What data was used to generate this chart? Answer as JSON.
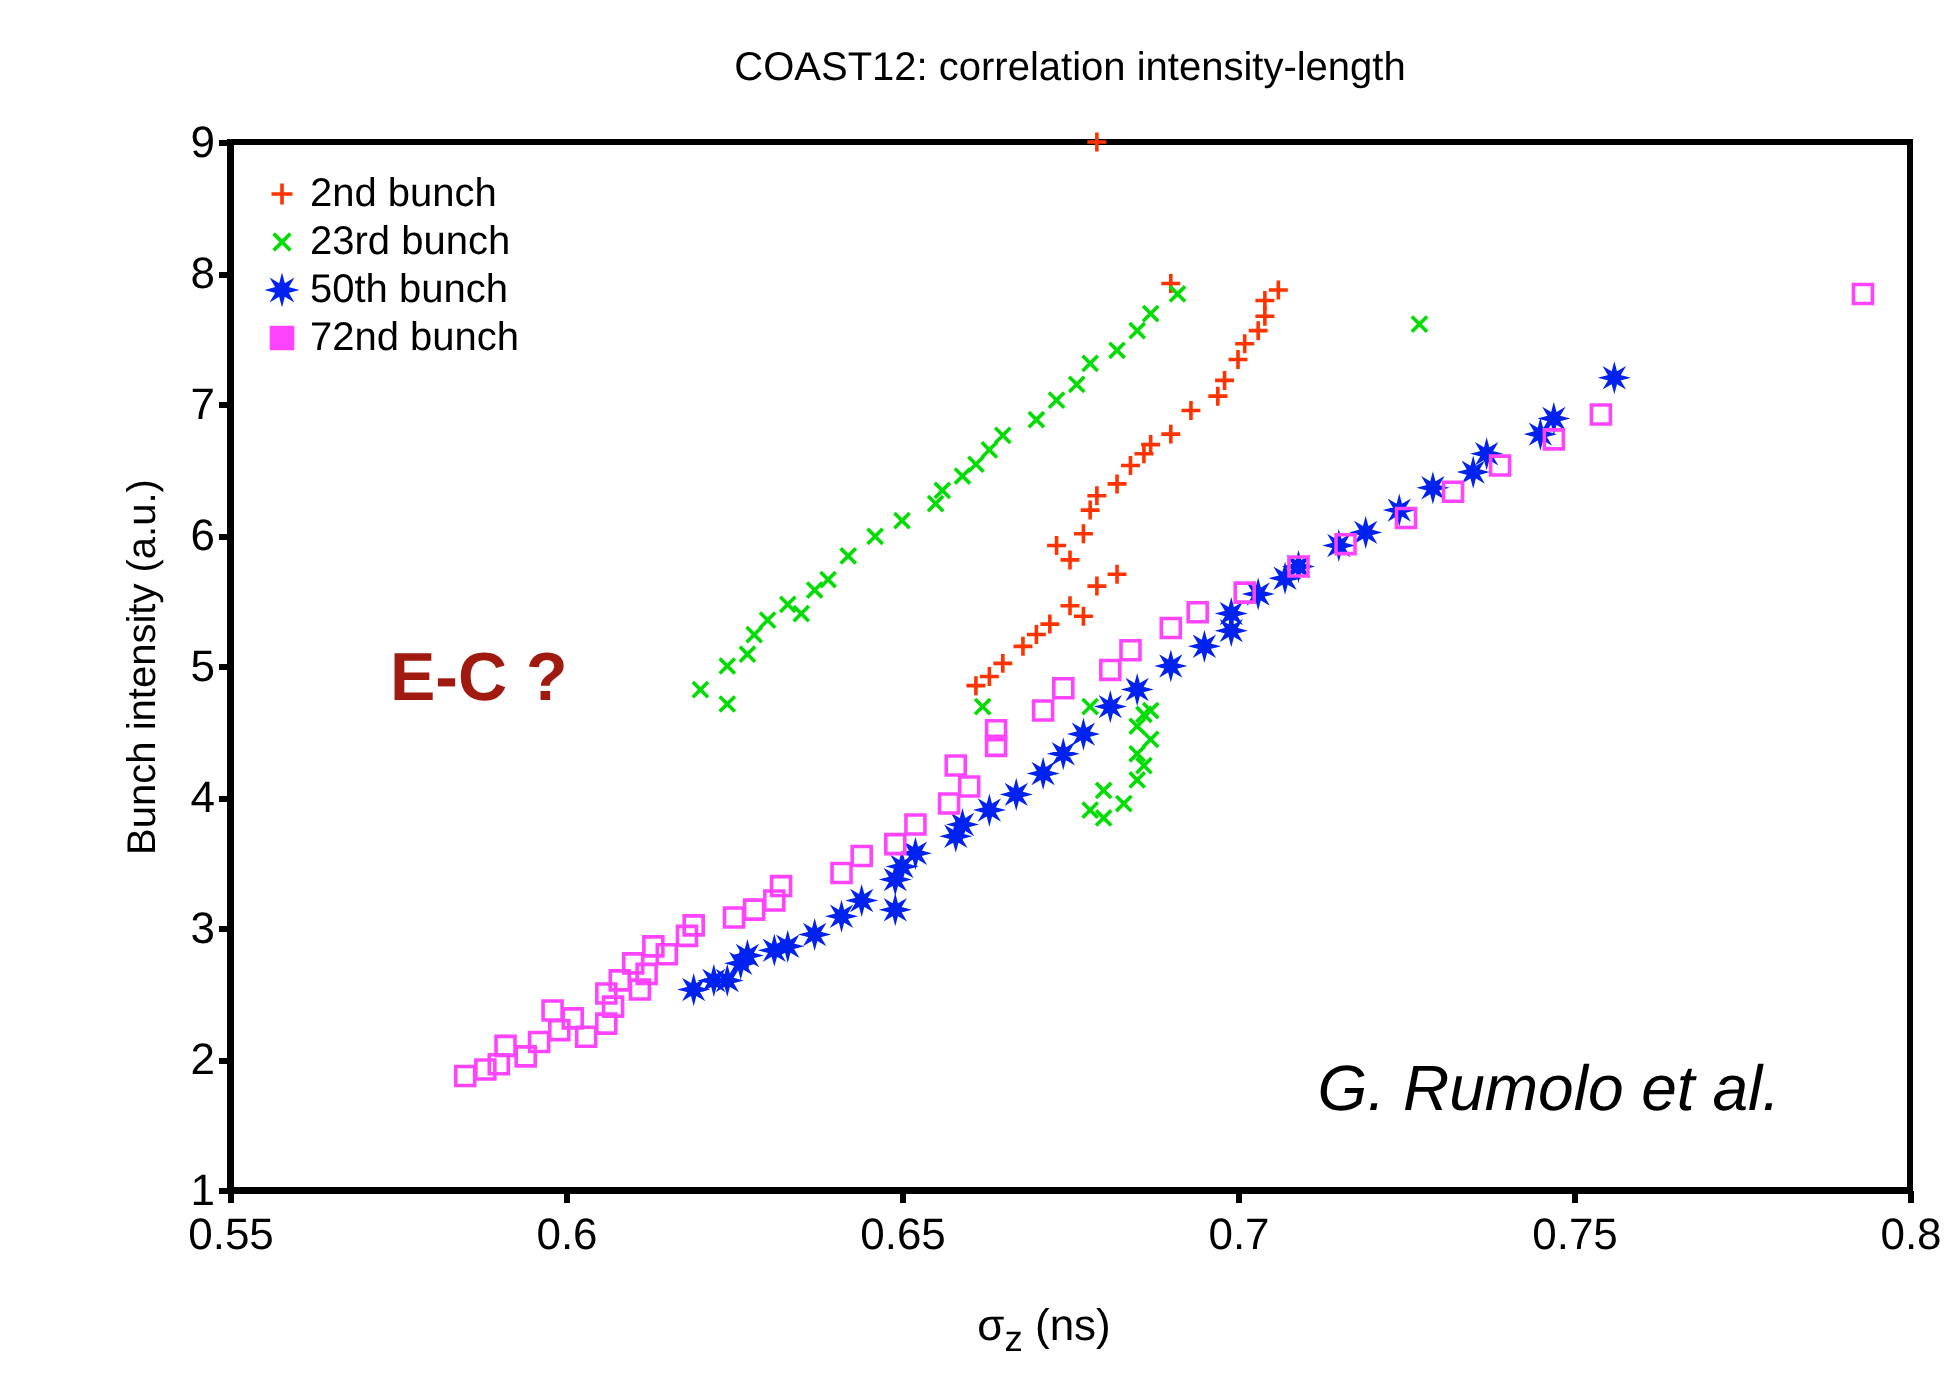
{
  "chart_data": {
    "type": "scatter",
    "title": "COAST12: correlation intensity-length",
    "xlabel": "σ$_{z}$ (ns)",
    "ylabel": "Bunch intensity (a.u.)",
    "xlim": [
      0.55,
      0.8
    ],
    "xticks": [
      0.55,
      {
        "value": 0.6,
        "label": "0.6"
      },
      0.65,
      {
        "value": 0.7,
        "label": "0.7"
      },
      0.75,
      {
        "value": 0.8,
        "label": "0.8"
      }
    ],
    "ylim": [
      1,
      9
    ],
    "yticks": [
      1,
      2,
      3,
      4,
      5,
      6,
      7,
      8,
      9
    ],
    "grid": false,
    "legend": "top left",
    "annotations": [
      "E-C ?",
      "G. Rumolo et al."
    ],
    "series": [
      {
        "name": "2nd bunch",
        "color": "#ff3300",
        "marker": "cross",
        "x": [
          0.661,
          0.663,
          0.665,
          0.668,
          0.67,
          0.672,
          0.675,
          0.677,
          0.679,
          0.682,
          0.673,
          0.675,
          0.677,
          0.678,
          0.679,
          0.682,
          0.684,
          0.686,
          0.687,
          0.69,
          0.693,
          0.697,
          0.698,
          0.7,
          0.701,
          0.703,
          0.704,
          0.704,
          0.706,
          0.69,
          0.679
        ],
        "values": [
          4.85,
          4.92,
          5.02,
          5.15,
          5.24,
          5.32,
          5.46,
          5.38,
          5.61,
          5.7,
          5.92,
          5.81,
          6.01,
          6.19,
          6.3,
          6.39,
          6.53,
          6.62,
          6.69,
          6.77,
          6.95,
          7.06,
          7.18,
          7.34,
          7.46,
          7.56,
          7.67,
          7.79,
          7.87,
          7.92,
          9.0
        ]
      },
      {
        "name": "23rd bunch",
        "color": "#00dd00",
        "marker": "x",
        "x": [
          0.62,
          0.624,
          0.624,
          0.627,
          0.628,
          0.63,
          0.633,
          0.635,
          0.637,
          0.639,
          0.642,
          0.646,
          0.65,
          0.655,
          0.656,
          0.659,
          0.661,
          0.663,
          0.665,
          0.67,
          0.673,
          0.676,
          0.678,
          0.682,
          0.685,
          0.687,
          0.691,
          0.727,
          0.662,
          0.678,
          0.687,
          0.686,
          0.685,
          0.687,
          0.685,
          0.686,
          0.685,
          0.68,
          0.683,
          0.678,
          0.68
        ],
        "values": [
          4.82,
          4.71,
          5.0,
          5.09,
          5.24,
          5.35,
          5.47,
          5.4,
          5.58,
          5.66,
          5.84,
          5.99,
          6.11,
          6.24,
          6.34,
          6.45,
          6.54,
          6.65,
          6.76,
          6.88,
          7.03,
          7.15,
          7.31,
          7.41,
          7.56,
          7.69,
          7.84,
          7.61,
          4.69,
          4.69,
          4.66,
          4.63,
          4.54,
          4.44,
          4.33,
          4.24,
          4.13,
          4.05,
          3.95,
          3.9,
          3.84
        ]
      },
      {
        "name": "50th bunch",
        "color": "#0022ee",
        "marker": "star",
        "x": [
          0.619,
          0.622,
          0.624,
          0.626,
          0.627,
          0.631,
          0.633,
          0.637,
          0.641,
          0.644,
          0.649,
          0.649,
          0.65,
          0.652,
          0.658,
          0.659,
          0.663,
          0.667,
          0.671,
          0.674,
          0.677,
          0.681,
          0.685,
          0.69,
          0.695,
          0.699,
          0.699,
          0.703,
          0.707,
          0.709,
          0.715,
          0.719,
          0.724,
          0.729,
          0.735,
          0.737,
          0.745,
          0.747,
          0.756
        ],
        "values": [
          2.53,
          2.6,
          2.6,
          2.73,
          2.79,
          2.83,
          2.86,
          2.95,
          3.09,
          3.21,
          3.14,
          3.37,
          3.47,
          3.57,
          3.7,
          3.79,
          3.9,
          4.02,
          4.18,
          4.33,
          4.48,
          4.69,
          4.82,
          5.0,
          5.15,
          5.27,
          5.4,
          5.55,
          5.67,
          5.76,
          5.92,
          6.02,
          6.19,
          6.36,
          6.48,
          6.62,
          6.77,
          6.89,
          7.2
        ]
      },
      {
        "name": "72nd bunch",
        "color": "#ff44ff",
        "marker": "square",
        "x": [
          0.585,
          0.588,
          0.59,
          0.591,
          0.594,
          0.596,
          0.599,
          0.598,
          0.601,
          0.603,
          0.606,
          0.607,
          0.606,
          0.608,
          0.611,
          0.61,
          0.612,
          0.613,
          0.615,
          0.618,
          0.619,
          0.625,
          0.628,
          0.631,
          0.632,
          0.641,
          0.644,
          0.649,
          0.652,
          0.657,
          0.66,
          0.658,
          0.664,
          0.664,
          0.671,
          0.674,
          0.681,
          0.684,
          0.69,
          0.694,
          0.701,
          0.709,
          0.716,
          0.725,
          0.732,
          0.739,
          0.747,
          0.754,
          0.793
        ],
        "values": [
          1.87,
          1.92,
          1.96,
          2.1,
          2.02,
          2.13,
          2.22,
          2.37,
          2.31,
          2.17,
          2.27,
          2.4,
          2.5,
          2.6,
          2.53,
          2.73,
          2.65,
          2.86,
          2.8,
          2.94,
          3.02,
          3.08,
          3.14,
          3.21,
          3.32,
          3.42,
          3.55,
          3.64,
          3.79,
          3.95,
          4.08,
          4.24,
          4.39,
          4.51,
          4.66,
          4.83,
          4.97,
          5.12,
          5.29,
          5.41,
          5.56,
          5.76,
          5.93,
          6.13,
          6.33,
          6.53,
          6.73,
          6.92,
          7.84
        ]
      }
    ]
  }
}
